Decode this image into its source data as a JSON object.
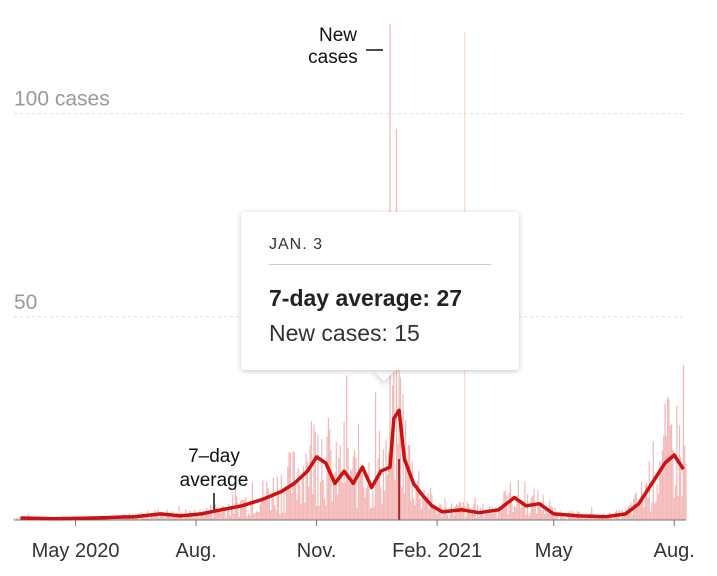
{
  "chart_data": {
    "type": "bar",
    "y_ticks": [
      {
        "value": 100,
        "label": "100 cases"
      },
      {
        "value": 50,
        "label": "50"
      }
    ],
    "x_ticks": [
      {
        "date": "2020-05-01",
        "label": "May 2020"
      },
      {
        "date": "2020-08-01",
        "label": "Aug."
      },
      {
        "date": "2020-11-01",
        "label": "Nov."
      },
      {
        "date": "2021-02-01",
        "label": "Feb. 2021"
      },
      {
        "date": "2021-05-01",
        "label": "May"
      },
      {
        "date": "2021-08-01",
        "label": "Aug."
      }
    ],
    "ylim": [
      0,
      125
    ],
    "x_range": [
      "2020-03-15",
      "2021-08-10"
    ],
    "grid": "horizontal dashed",
    "series": [
      {
        "name": "New cases",
        "type": "bar",
        "color": "#f4b6b6"
      },
      {
        "name": "7-day average",
        "type": "line",
        "color": "#cc1111"
      }
    ],
    "avg_points": [
      [
        "2020-03-20",
        0.5
      ],
      [
        "2020-04-15",
        0.3
      ],
      [
        "2020-05-15",
        0.5
      ],
      [
        "2020-06-15",
        0.8
      ],
      [
        "2020-07-05",
        1.5
      ],
      [
        "2020-07-20",
        1.0
      ],
      [
        "2020-08-05",
        1.5
      ],
      [
        "2020-08-20",
        2.5
      ],
      [
        "2020-09-05",
        3.5
      ],
      [
        "2020-09-20",
        5.0
      ],
      [
        "2020-10-05",
        7.0
      ],
      [
        "2020-10-15",
        9.0
      ],
      [
        "2020-10-25",
        12.0
      ],
      [
        "2020-11-01",
        15.5
      ],
      [
        "2020-11-08",
        14.0
      ],
      [
        "2020-11-15",
        9.0
      ],
      [
        "2020-11-22",
        12.0
      ],
      [
        "2020-11-29",
        9.0
      ],
      [
        "2020-12-06",
        13.0
      ],
      [
        "2020-12-13",
        8.0
      ],
      [
        "2020-12-20",
        12.0
      ],
      [
        "2020-12-27",
        13.0
      ],
      [
        "2020-12-30",
        25.0
      ],
      [
        "2021-01-03",
        27.0
      ],
      [
        "2021-01-07",
        15.0
      ],
      [
        "2021-01-14",
        9.0
      ],
      [
        "2021-01-21",
        6.0
      ],
      [
        "2021-01-28",
        3.5
      ],
      [
        "2021-02-05",
        2.0
      ],
      [
        "2021-02-20",
        2.5
      ],
      [
        "2021-03-05",
        1.8
      ],
      [
        "2021-03-20",
        2.5
      ],
      [
        "2021-04-01",
        5.5
      ],
      [
        "2021-04-10",
        3.5
      ],
      [
        "2021-04-20",
        4.0
      ],
      [
        "2021-05-01",
        1.5
      ],
      [
        "2021-05-20",
        1.0
      ],
      [
        "2021-06-10",
        0.8
      ],
      [
        "2021-06-25",
        1.5
      ],
      [
        "2021-07-05",
        4.0
      ],
      [
        "2021-07-15",
        9.0
      ],
      [
        "2021-07-25",
        14.0
      ],
      [
        "2021-08-01",
        16.0
      ],
      [
        "2021-08-08",
        12.5
      ]
    ],
    "annotations": {
      "new_cases_label": [
        "New",
        "cases"
      ],
      "avg_label": [
        "7–day",
        "average"
      ]
    }
  },
  "tooltip": {
    "date": "JAN. 3",
    "avg_text": "7-day average: 27",
    "new_text": "New cases: 15"
  }
}
